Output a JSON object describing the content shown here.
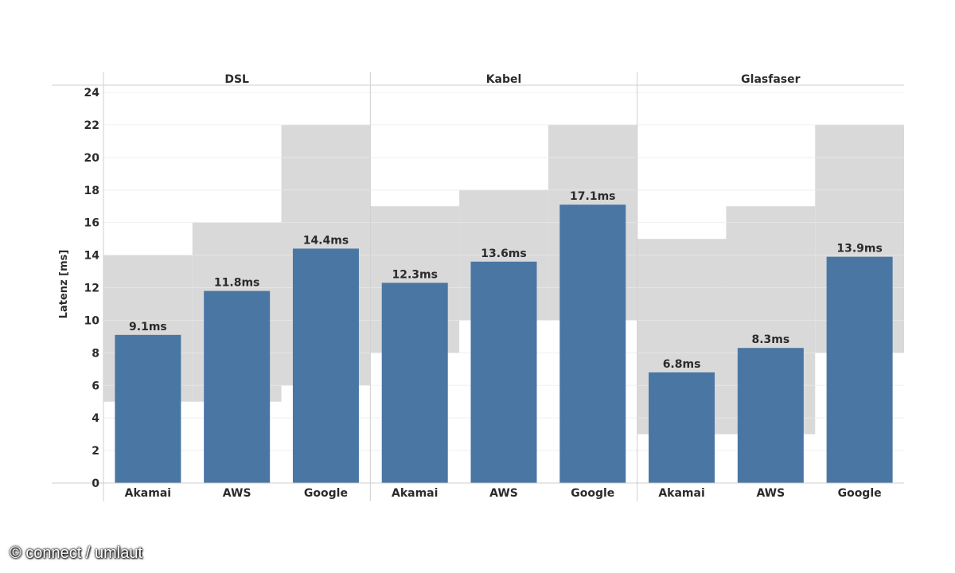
{
  "chart_data": {
    "type": "bar",
    "ylabel": "Latenz [ms]",
    "ylim": [
      0,
      24
    ],
    "yticks": [
      0,
      2,
      4,
      6,
      8,
      10,
      12,
      14,
      16,
      18,
      20,
      22,
      24
    ],
    "grid": true,
    "panels": [
      {
        "title": "DSL",
        "categories": [
          "Akamai",
          "AWS",
          "Google"
        ],
        "values": [
          9.1,
          11.8,
          14.4
        ],
        "labels": [
          "9.1ms",
          "11.8ms",
          "14.4ms"
        ],
        "ranges": [
          [
            5,
            14
          ],
          [
            5,
            16
          ],
          [
            6,
            22
          ]
        ]
      },
      {
        "title": "Kabel",
        "categories": [
          "Akamai",
          "AWS",
          "Google"
        ],
        "values": [
          12.3,
          13.6,
          17.1
        ],
        "labels": [
          "12.3ms",
          "13.6ms",
          "17.1ms"
        ],
        "ranges": [
          [
            8,
            17
          ],
          [
            10,
            18
          ],
          [
            10,
            22
          ]
        ]
      },
      {
        "title": "Glasfaser",
        "categories": [
          "Akamai",
          "AWS",
          "Google"
        ],
        "values": [
          6.8,
          8.3,
          13.9
        ],
        "labels": [
          "6.8ms",
          "8.3ms",
          "13.9ms"
        ],
        "ranges": [
          [
            3,
            15
          ],
          [
            3,
            17
          ],
          [
            8,
            22
          ]
        ]
      }
    ]
  },
  "colors": {
    "bar": "#4a76a4",
    "range": "#d9d9d9",
    "grid": "#eaeaea",
    "divider": "#cfcfcf"
  },
  "credit": "© connect / umlaut"
}
